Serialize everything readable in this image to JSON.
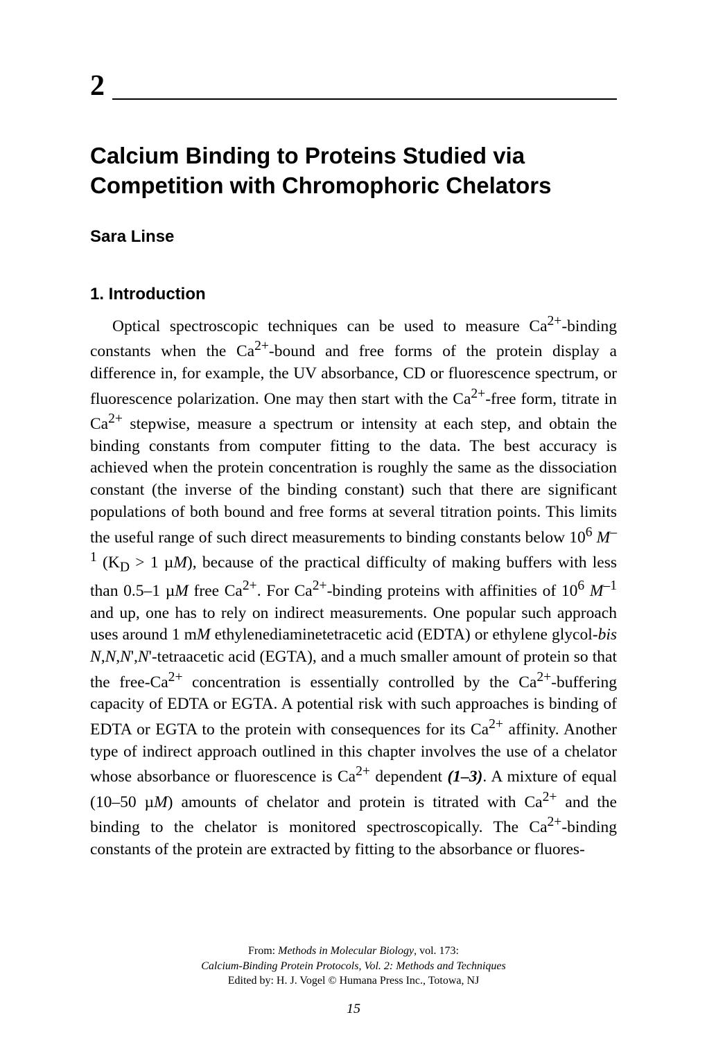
{
  "chapter": {
    "number": "2",
    "title_line1": "Calcium Binding to Proteins Studied via",
    "title_line2": "Competition with Chromophoric Chelators",
    "author": "Sara Linse"
  },
  "section": {
    "heading": "1. Introduction",
    "body_html": "Optical spectroscopic techniques can be used to measure Ca<sup>2+</sup>-binding constants when the Ca<sup>2+</sup>-bound and free forms of the protein display a difference in, for example, the UV absorbance, CD or fluorescence spectrum, or fluorescence polarization. One may then start with the Ca<sup>2+</sup>-free form, titrate in Ca<sup>2+</sup> stepwise, measure a spectrum or intensity at each step, and obtain the binding constants from computer fitting to the data. The best accuracy is achieved when the protein concentration is roughly the same as the dissociation constant (the inverse of the binding constant) such that there are significant populations of both bound and free forms at several titration points. This limits the useful range of such direct measurements to binding constants below 10<sup>6</sup> <i>M</i><sup>–1</sup> (K<sub>D</sub> > 1 µ<i>M</i>), because of the practical difficulty of making buffers with less than 0.5–1 µ<i>M</i> free Ca<sup>2+</sup>. For Ca<sup>2+</sup>-binding proteins with affinities of 10<sup>6</sup> <i>M</i><sup>–1</sup> and up, one has to rely on indirect measurements. One popular such approach uses around 1 m<i>M</i> ethylenediaminetetracetic acid (EDTA) or ethylene glycol-<i>bis</i> <i>N</i>,<i>N</i>,<i>N</i>',<i>N</i>'-tetraacetic acid (EGTA), and a much smaller amount of protein so that the free-Ca<sup>2+</sup> concentration is essentially controlled by the Ca<sup>2+</sup>-buffering capacity of EDTA or EGTA. A potential risk with such approaches is binding of EDTA or EGTA to the protein with consequences for its Ca<sup>2+</sup> affinity. Another type of indirect approach outlined in this chapter involves the use of a chelator whose absorbance or fluorescence is Ca<sup>2+</sup> dependent <b><i>(1–3)</i></b>. A mixture of equal (10–50 µ<i>M</i>) amounts of chelator and protein is titrated with Ca<sup>2+</sup> and the binding to the chelator is monitored spectroscopically. The Ca<sup>2+</sup>-binding constants of the protein are extracted by fitting to the absorbance or fluores-"
  },
  "footer": {
    "line1_prefix": "From: ",
    "line1_italic": "Methods in Molecular Biology",
    "line1_suffix": ", vol. 173:",
    "line2": "Calcium-Binding Protein Protocols, Vol. 2: Methods and Techniques",
    "line3": "Edited by: H. J. Vogel  © Humana Press Inc., Totowa, NJ",
    "page_number": "15"
  },
  "colors": {
    "text": "#000000",
    "background": "#ffffff",
    "rule": "#000000"
  },
  "typography": {
    "body_font": "Times New Roman",
    "heading_font": "Arial",
    "chapter_number_size": 42,
    "title_size": 33,
    "author_size": 24,
    "section_heading_size": 24,
    "body_size": 23.5,
    "footer_size": 16,
    "page_number_size": 20
  }
}
